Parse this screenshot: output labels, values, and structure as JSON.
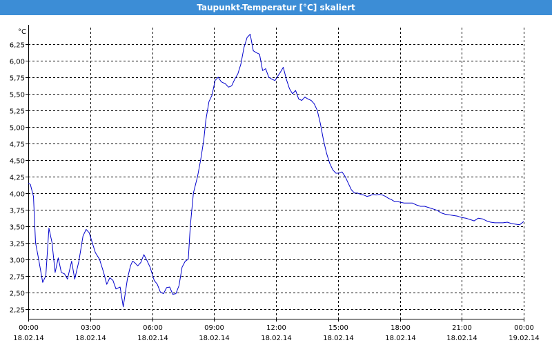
{
  "window": {
    "title": "Taupunkt-Temperatur [°C] skaliert"
  },
  "colors": {
    "titlebar": "#3c8dd6",
    "line": "#0000cc",
    "grid": "#000000"
  },
  "chart_data": {
    "type": "line",
    "title": "Taupunkt-Temperatur [°C] skaliert",
    "ylabel": "°C",
    "xlabel": "",
    "ylim": [
      2.1,
      6.5
    ],
    "xlim": [
      0,
      24
    ],
    "grid": true,
    "y_ticks": [
      "2,25",
      "2,50",
      "2,75",
      "3,00",
      "3,25",
      "3,50",
      "3,75",
      "4,00",
      "4,25",
      "4,50",
      "4,75",
      "5,00",
      "5,25",
      "5,50",
      "5,75",
      "6,00",
      "6,25"
    ],
    "y_tick_values": [
      2.25,
      2.5,
      2.75,
      3.0,
      3.25,
      3.5,
      3.75,
      4.0,
      4.25,
      4.5,
      4.75,
      5.0,
      5.25,
      5.5,
      5.75,
      6.0,
      6.25
    ],
    "x_ticks": [
      {
        "time": "00:00",
        "date": "18.02.14"
      },
      {
        "time": "03:00",
        "date": "18.02.14"
      },
      {
        "time": "06:00",
        "date": "18.02.14"
      },
      {
        "time": "09:00",
        "date": "18.02.14"
      },
      {
        "time": "12:00",
        "date": "18.02.14"
      },
      {
        "time": "15:00",
        "date": "18.02.14"
      },
      {
        "time": "18:00",
        "date": "18.02.14"
      },
      {
        "time": "21:00",
        "date": "18.02.14"
      },
      {
        "time": "00:00",
        "date": "19.02.14"
      }
    ],
    "x_tick_hours": [
      0,
      3,
      6,
      9,
      12,
      15,
      18,
      21,
      24
    ],
    "series": [
      {
        "x": [
          0.0,
          0.1,
          0.25,
          0.35,
          0.5,
          0.7,
          0.85,
          1.0,
          1.15,
          1.3,
          1.45,
          1.6,
          1.75,
          1.9,
          2.1,
          2.25,
          2.45,
          2.65,
          2.8,
          2.95,
          3.1,
          3.25,
          3.45,
          3.65,
          3.8,
          3.95,
          4.1,
          4.25,
          4.45,
          4.6,
          4.8,
          4.95,
          5.05,
          5.15,
          5.3,
          5.45,
          5.6,
          5.75,
          5.9,
          6.1,
          6.25,
          6.4,
          6.55,
          6.7,
          6.85,
          7.0,
          7.15,
          7.3,
          7.45,
          7.6,
          7.75,
          7.85,
          8.0,
          8.2,
          8.35,
          8.5,
          8.6,
          8.75,
          8.9,
          9.05,
          9.2,
          9.35,
          9.55,
          9.7,
          9.85,
          10.0,
          10.15,
          10.3,
          10.45,
          10.6,
          10.75,
          10.9,
          11.05,
          11.2,
          11.35,
          11.5,
          11.65,
          11.8,
          11.95,
          12.05,
          12.2,
          12.35,
          12.5,
          12.65,
          12.8,
          12.95,
          13.1,
          13.25,
          13.4,
          13.55,
          13.7,
          13.85,
          14.0,
          14.15,
          14.3,
          14.45,
          14.6,
          14.75,
          14.9,
          15.05,
          15.2,
          15.35,
          15.5,
          15.65,
          15.8,
          15.95,
          16.1,
          16.25,
          16.4,
          16.55,
          16.7,
          16.85,
          17.0,
          17.15,
          17.3,
          17.45,
          17.6,
          17.75,
          17.9,
          18.05,
          18.2,
          18.4,
          18.6,
          18.8,
          19.0,
          19.2,
          19.4,
          19.6,
          19.8,
          20.0,
          20.2,
          20.4,
          20.6,
          20.8,
          21.0,
          21.2,
          21.4,
          21.6,
          21.8,
          22.0,
          22.2,
          22.4,
          22.6,
          22.8,
          23.0,
          23.2,
          23.4,
          23.6,
          23.8,
          24.0
        ],
        "values": [
          4.15,
          4.13,
          3.95,
          3.25,
          3.0,
          2.65,
          2.75,
          3.47,
          3.25,
          2.8,
          3.02,
          2.8,
          2.78,
          2.7,
          2.97,
          2.7,
          2.97,
          3.35,
          3.45,
          3.4,
          3.25,
          3.1,
          3.0,
          2.8,
          2.62,
          2.72,
          2.68,
          2.55,
          2.58,
          2.28,
          2.7,
          2.9,
          2.97,
          2.95,
          2.9,
          2.95,
          3.07,
          2.98,
          2.88,
          2.68,
          2.62,
          2.5,
          2.48,
          2.57,
          2.58,
          2.47,
          2.48,
          2.6,
          2.88,
          2.97,
          3.0,
          3.5,
          4.0,
          4.25,
          4.5,
          4.8,
          5.1,
          5.38,
          5.48,
          5.7,
          5.75,
          5.68,
          5.65,
          5.6,
          5.62,
          5.72,
          5.8,
          5.95,
          6.2,
          6.35,
          6.4,
          6.15,
          6.12,
          6.1,
          5.85,
          5.88,
          5.75,
          5.72,
          5.7,
          5.75,
          5.82,
          5.9,
          5.72,
          5.58,
          5.5,
          5.55,
          5.42,
          5.4,
          5.45,
          5.42,
          5.4,
          5.35,
          5.25,
          5.05,
          4.8,
          4.6,
          4.45,
          4.35,
          4.3,
          4.3,
          4.32,
          4.25,
          4.15,
          4.05,
          4.0,
          4.0,
          3.98,
          3.97,
          3.95,
          3.96,
          3.98,
          3.97,
          3.98,
          3.97,
          3.95,
          3.92,
          3.9,
          3.87,
          3.87,
          3.86,
          3.85,
          3.85,
          3.85,
          3.82,
          3.8,
          3.8,
          3.78,
          3.76,
          3.74,
          3.7,
          3.68,
          3.67,
          3.66,
          3.65,
          3.63,
          3.62,
          3.6,
          3.58,
          3.62,
          3.61,
          3.58,
          3.56,
          3.55,
          3.55,
          3.55,
          3.56,
          3.54,
          3.53,
          3.52,
          3.57
        ]
      }
    ]
  }
}
